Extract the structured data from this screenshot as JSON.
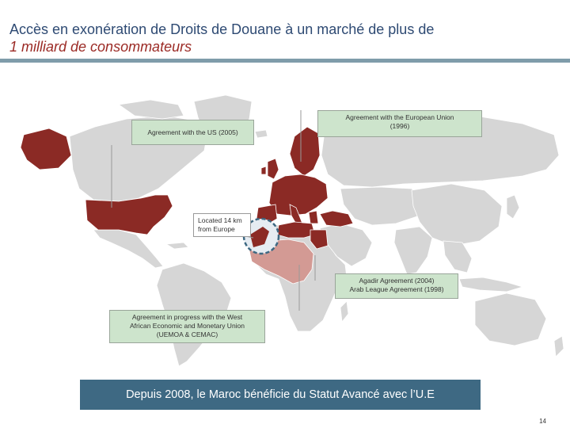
{
  "header": {
    "title_line1": "Accès en exonération de Droits de Douane à un marché de plus de",
    "title_line2": "1 milliard de consommateurs"
  },
  "callouts": {
    "us": "Agreement with the US (2005)",
    "eu_line1": "Agreement with the European Union",
    "eu_line2": "(1996)",
    "location_line1": "Located 14 km",
    "location_line2": "from Europe",
    "agadir_line1": "Agadir Agreement (2004)",
    "agadir_line2": "Arab League Agreement (1998)",
    "west_africa_line1": "Agreement in progress with the West",
    "west_africa_line2": "African Economic and Monetary Union",
    "west_africa_line3": "(UEMOA & CEMAC)"
  },
  "banner": "Depuis 2008, le Maroc bénéficie du Statut Avancé avec l’U.E",
  "page_number": "14",
  "colors": {
    "title_blue": "#2e4a73",
    "title_red": "#9b2a25",
    "agreement_red": "#8b2a25",
    "west_africa_pink": "#d39a94",
    "land_gray": "#d6d6d6",
    "callout_green": "#cde4cc",
    "banner_blue": "#3e6983"
  }
}
